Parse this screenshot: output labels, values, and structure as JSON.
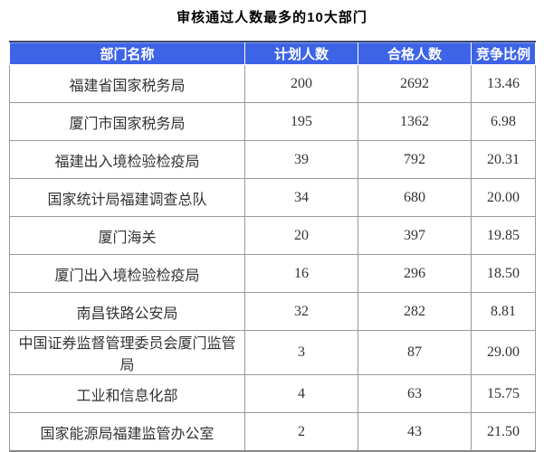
{
  "title": "审核通过人数最多的10大部门",
  "chart_data": {
    "type": "table",
    "title": "审核通过人数最多的10大部门",
    "columns": [
      "部门名称",
      "计划人数",
      "合格人数",
      "竞争比例"
    ],
    "rows": [
      [
        "福建省国家税务局",
        "200",
        "2692",
        "13.46"
      ],
      [
        "厦门市国家税务局",
        "195",
        "1362",
        "6.98"
      ],
      [
        "福建出入境检验检疫局",
        "39",
        "792",
        "20.31"
      ],
      [
        "国家统计局福建调查总队",
        "34",
        "680",
        "20.00"
      ],
      [
        "厦门海关",
        "20",
        "397",
        "19.85"
      ],
      [
        "厦门出入境检验检疫局",
        "16",
        "296",
        "18.50"
      ],
      [
        "南昌铁路公安局",
        "32",
        "282",
        "8.81"
      ],
      [
        "中国证券监督管理委员会厦门监管局",
        "3",
        "87",
        "29.00"
      ],
      [
        "工业和信息化部",
        "4",
        "63",
        "15.75"
      ],
      [
        "国家能源局福建监管办公室",
        "2",
        "43",
        "21.50"
      ]
    ]
  },
  "colors": {
    "header_bg": "#3d63e6",
    "header_text": "#ffffff",
    "top_border": "#3e4a6d",
    "grid_line": "#999999",
    "body_text": "#333333"
  }
}
